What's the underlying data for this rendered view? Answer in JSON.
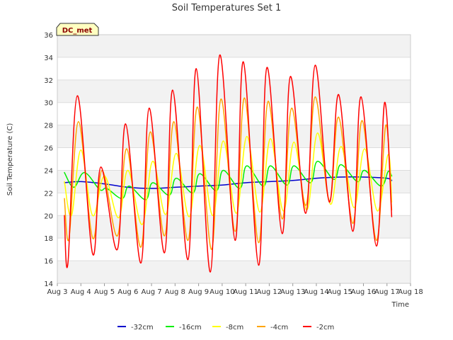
{
  "chart_data": {
    "type": "line",
    "title": "Soil Temperatures Set 1",
    "xlabel": "Time",
    "ylabel": "Soil Temperature (C)",
    "ylim": [
      14,
      36
    ],
    "yticks": [
      14,
      16,
      18,
      20,
      22,
      24,
      26,
      28,
      30,
      32,
      34,
      36
    ],
    "xlim": [
      3,
      18
    ],
    "xticks": [
      {
        "value": 3,
        "label": "Aug 3"
      },
      {
        "value": 4,
        "label": "Aug 4"
      },
      {
        "value": 5,
        "label": "Aug 5"
      },
      {
        "value": 6,
        "label": "Aug 6"
      },
      {
        "value": 7,
        "label": "Aug 7"
      },
      {
        "value": 8,
        "label": "Aug 8"
      },
      {
        "value": 9,
        "label": "Aug 9"
      },
      {
        "value": 10,
        "label": "Aug 10"
      },
      {
        "value": 11,
        "label": "Aug 11"
      },
      {
        "value": 12,
        "label": "Aug 12"
      },
      {
        "value": 13,
        "label": "Aug 13"
      },
      {
        "value": 14,
        "label": "Aug 14"
      },
      {
        "value": 15,
        "label": "Aug 15"
      },
      {
        "value": 16,
        "label": "Aug 16"
      },
      {
        "value": 17,
        "label": "Aug 17"
      },
      {
        "value": 18,
        "label": "Aug 18"
      }
    ],
    "badge": "DC_met",
    "grid": "horizontal bands",
    "legend_position": "bottom-center",
    "series": [
      {
        "name": "-32cm",
        "color": "#0000cc",
        "x": [
          3.3,
          4.0,
          5.0,
          6.0,
          7.0,
          8.0,
          9.0,
          10.0,
          11.0,
          12.0,
          13.0,
          14.0,
          15.0,
          16.0,
          17.0,
          17.2
        ],
        "y": [
          22.9,
          23.0,
          22.8,
          22.5,
          22.4,
          22.5,
          22.6,
          22.7,
          22.9,
          23.0,
          23.1,
          23.3,
          23.4,
          23.4,
          23.3,
          23.1
        ]
      },
      {
        "name": "-16cm",
        "color": "#00ee00",
        "x": [
          3.3,
          3.7,
          4.15,
          4.8,
          5.1,
          5.75,
          6.05,
          6.75,
          7.05,
          7.75,
          8.05,
          8.75,
          9.05,
          9.75,
          10.05,
          10.75,
          11.05,
          11.75,
          12.05,
          12.75,
          13.05,
          13.75,
          14.05,
          14.75,
          15.05,
          15.75,
          16.05,
          16.75,
          17.05,
          17.2
        ],
        "y": [
          23.8,
          22.5,
          23.8,
          22.3,
          22.4,
          21.5,
          22.6,
          21.4,
          22.9,
          21.8,
          23.3,
          22.0,
          23.7,
          22.2,
          24.0,
          22.4,
          24.4,
          22.6,
          24.4,
          22.7,
          24.4,
          22.9,
          24.8,
          23.2,
          24.5,
          23.0,
          24.0,
          22.6,
          23.9,
          23.5
        ]
      },
      {
        "name": "-8cm",
        "color": "#ffff00",
        "x": [
          3.3,
          3.6,
          4.0,
          4.5,
          5.0,
          5.6,
          6.0,
          6.6,
          7.05,
          7.6,
          8.05,
          8.6,
          9.05,
          9.6,
          10.05,
          10.6,
          11.05,
          11.6,
          12.05,
          12.6,
          13.05,
          13.6,
          14.05,
          14.6,
          15.05,
          15.6,
          16.05,
          16.6,
          17.05,
          17.2
        ],
        "y": [
          23.0,
          20.0,
          25.8,
          20.0,
          23.5,
          19.8,
          24.0,
          19.2,
          24.8,
          20.1,
          25.5,
          19.9,
          26.2,
          20.0,
          26.6,
          20.2,
          27.0,
          20.3,
          26.8,
          20.4,
          26.5,
          20.5,
          27.3,
          21.0,
          26.1,
          20.7,
          25.9,
          20.4,
          25.4,
          21.2
        ]
      },
      {
        "name": "-4cm",
        "color": "#ffa500",
        "x": [
          3.3,
          3.5,
          3.9,
          4.5,
          4.9,
          5.55,
          5.95,
          6.55,
          6.95,
          7.55,
          7.95,
          8.55,
          8.95,
          9.55,
          9.95,
          10.55,
          10.95,
          11.55,
          11.95,
          12.55,
          12.95,
          13.55,
          13.95,
          14.55,
          14.95,
          15.55,
          15.95,
          16.55,
          16.95,
          17.2
        ],
        "y": [
          21.5,
          18.0,
          28.3,
          18.0,
          24.0,
          18.2,
          25.9,
          17.2,
          27.4,
          18.2,
          28.3,
          17.8,
          29.6,
          17.0,
          30.3,
          18.6,
          30.4,
          17.6,
          30.1,
          19.7,
          29.5,
          20.9,
          30.5,
          21.3,
          28.7,
          19.3,
          28.4,
          17.8,
          28.0,
          20.5
        ]
      },
      {
        "name": "-2cm",
        "color": "#ff0000",
        "x": [
          3.3,
          3.45,
          3.85,
          4.5,
          4.85,
          5.55,
          5.9,
          6.55,
          6.9,
          7.55,
          7.9,
          8.55,
          8.9,
          9.5,
          9.9,
          10.55,
          10.9,
          11.55,
          11.9,
          12.55,
          12.9,
          13.55,
          13.95,
          14.55,
          14.95,
          15.55,
          15.9,
          16.55,
          16.9,
          17.2
        ],
        "y": [
          20.0,
          15.8,
          30.6,
          16.6,
          24.3,
          17.0,
          28.1,
          15.8,
          29.5,
          16.7,
          31.1,
          16.1,
          33.0,
          15.0,
          34.2,
          17.8,
          33.6,
          15.6,
          33.1,
          18.4,
          32.3,
          20.2,
          33.3,
          21.2,
          30.7,
          18.6,
          30.5,
          17.3,
          30.0,
          19.9
        ]
      }
    ]
  }
}
